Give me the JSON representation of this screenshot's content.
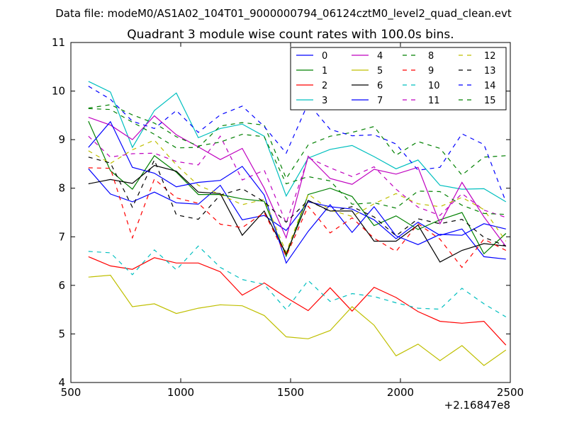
{
  "suptitle": "Data file: modeM0/AS1A02_104T01_9000000794_06124cztM0_level2_quad_clean.evt",
  "chart_data": {
    "type": "line",
    "title": "Quadrant 3 module wise count rates with 100.0s bins.",
    "xlabel": "",
    "ylabel": "",
    "x_offset_label": "+2.16847e8",
    "xlim": [
      500,
      2500
    ],
    "ylim": [
      4,
      11
    ],
    "xticks": [
      "500",
      "1000",
      "1500",
      "2000",
      "2500"
    ],
    "yticks": [
      "4",
      "5",
      "6",
      "7",
      "8",
      "9",
      "10",
      "11"
    ],
    "grid": false,
    "legend_position": "top-right",
    "x": [
      580,
      680,
      780,
      880,
      980,
      1080,
      1180,
      1280,
      1380,
      1480,
      1580,
      1680,
      1780,
      1880,
      1980,
      2080,
      2180,
      2280,
      2380,
      2480
    ],
    "series": [
      {
        "name": "0",
        "color": "#0000ff",
        "dash": "solid",
        "values": [
          8.4,
          7.88,
          7.72,
          7.92,
          7.7,
          7.67,
          8.06,
          7.35,
          7.44,
          7.13,
          7.72,
          7.62,
          7.57,
          7.35,
          6.96,
          7.3,
          7.03,
          7.16,
          6.59,
          6.54
        ]
      },
      {
        "name": "1",
        "color": "#008000",
        "dash": "solid",
        "values": [
          9.38,
          8.36,
          7.98,
          8.67,
          8.33,
          7.87,
          7.87,
          7.78,
          7.73,
          6.6,
          7.87,
          8.0,
          7.83,
          7.23,
          7.43,
          7.15,
          7.35,
          7.5,
          6.65,
          7.07
        ]
      },
      {
        "name": "2",
        "color": "#ff0000",
        "dash": "solid",
        "values": [
          6.59,
          6.4,
          6.33,
          6.57,
          6.46,
          6.46,
          6.28,
          5.8,
          6.05,
          5.75,
          5.48,
          5.95,
          5.47,
          5.96,
          5.75,
          5.46,
          5.26,
          5.22,
          5.26,
          4.77
        ]
      },
      {
        "name": "3",
        "color": "#00bfbf",
        "dash": "solid",
        "values": [
          10.2,
          9.98,
          8.84,
          9.6,
          9.96,
          9.04,
          9.23,
          9.32,
          9.07,
          7.84,
          8.62,
          8.8,
          8.88,
          8.65,
          8.4,
          8.58,
          8.06,
          7.98,
          7.99,
          7.72
        ]
      },
      {
        "name": "4",
        "color": "#bf00bf",
        "dash": "solid",
        "values": [
          9.46,
          9.3,
          9.0,
          9.49,
          9.1,
          8.85,
          8.59,
          8.82,
          8.0,
          6.98,
          8.66,
          8.2,
          8.08,
          8.39,
          8.29,
          8.43,
          7.27,
          8.12,
          7.41,
          6.8
        ]
      },
      {
        "name": "5",
        "color": "#bfbf00",
        "dash": "solid",
        "values": [
          6.17,
          6.21,
          5.56,
          5.62,
          5.42,
          5.53,
          5.6,
          5.58,
          5.38,
          4.94,
          4.9,
          5.07,
          5.56,
          5.18,
          4.55,
          4.79,
          4.45,
          4.76,
          4.35,
          4.67
        ]
      },
      {
        "name": "6",
        "color": "#000000",
        "dash": "solid",
        "values": [
          8.09,
          8.18,
          8.1,
          8.47,
          8.35,
          7.92,
          7.89,
          7.03,
          7.53,
          6.65,
          7.75,
          7.53,
          7.53,
          6.91,
          6.91,
          7.24,
          6.48,
          6.72,
          6.86,
          6.81
        ]
      },
      {
        "name": "7",
        "color": "#0000ff",
        "dash": "solid",
        "values": [
          8.84,
          9.37,
          8.43,
          8.31,
          8.03,
          8.12,
          8.16,
          8.45,
          7.86,
          6.46,
          7.11,
          7.66,
          7.09,
          7.62,
          7.02,
          6.84,
          7.05,
          7.03,
          7.27,
          7.16
        ]
      },
      {
        "name": "8",
        "color": "#008000",
        "dash": "dashed",
        "values": [
          9.64,
          9.62,
          9.36,
          9.11,
          8.83,
          8.84,
          9.28,
          9.35,
          9.3,
          8.2,
          8.89,
          9.07,
          9.15,
          9.27,
          8.68,
          8.96,
          8.82,
          8.27,
          8.64,
          8.67
        ]
      },
      {
        "name": "9",
        "color": "#ff0000",
        "dash": "dashed",
        "values": [
          8.42,
          8.41,
          6.98,
          8.19,
          7.8,
          7.69,
          7.26,
          7.19,
          7.5,
          6.6,
          7.63,
          7.08,
          7.39,
          6.97,
          6.7,
          7.27,
          6.95,
          6.37,
          6.95,
          6.72
        ]
      },
      {
        "name": "10",
        "color": "#00bfbf",
        "dash": "dashed",
        "values": [
          6.7,
          6.67,
          6.22,
          6.73,
          6.32,
          6.81,
          6.37,
          6.12,
          6.02,
          5.5,
          6.1,
          5.67,
          5.83,
          5.77,
          5.64,
          5.53,
          5.51,
          5.94,
          5.62,
          5.35
        ]
      },
      {
        "name": "11",
        "color": "#bf00bf",
        "dash": "dashed",
        "values": [
          9.07,
          8.64,
          8.71,
          8.72,
          8.55,
          8.48,
          9.07,
          8.17,
          8.37,
          7.28,
          8.63,
          8.42,
          8.24,
          8.44,
          7.98,
          7.61,
          7.44,
          7.89,
          7.55,
          7.4
        ]
      },
      {
        "name": "12",
        "color": "#bfbf00",
        "dash": "dashed",
        "values": [
          8.77,
          8.51,
          8.79,
          8.99,
          8.48,
          8.06,
          7.87,
          7.66,
          7.77,
          6.68,
          7.88,
          7.55,
          7.42,
          7.68,
          7.89,
          7.68,
          7.62,
          7.81,
          7.56,
          6.91
        ]
      },
      {
        "name": "13",
        "color": "#000000",
        "dash": "dashed",
        "values": [
          8.64,
          8.52,
          7.61,
          8.58,
          7.45,
          7.36,
          7.86,
          7.99,
          7.72,
          7.3,
          7.75,
          7.52,
          7.62,
          7.41,
          7.02,
          7.37,
          7.27,
          7.36,
          6.99,
          6.81
        ]
      },
      {
        "name": "14",
        "color": "#0000ff",
        "dash": "dashed",
        "values": [
          10.1,
          9.83,
          9.38,
          9.23,
          9.6,
          9.15,
          9.51,
          9.69,
          9.27,
          8.72,
          9.75,
          9.21,
          9.08,
          9.1,
          8.91,
          8.37,
          8.43,
          9.12,
          8.9,
          7.72
        ]
      },
      {
        "name": "15",
        "color": "#008000",
        "dash": "dashed",
        "values": [
          9.65,
          9.72,
          9.51,
          9.34,
          9.06,
          8.87,
          8.95,
          9.11,
          9.06,
          8.09,
          8.24,
          8.15,
          7.67,
          7.7,
          7.59,
          7.94,
          7.93,
          7.65,
          7.48,
          7.46
        ]
      }
    ]
  }
}
